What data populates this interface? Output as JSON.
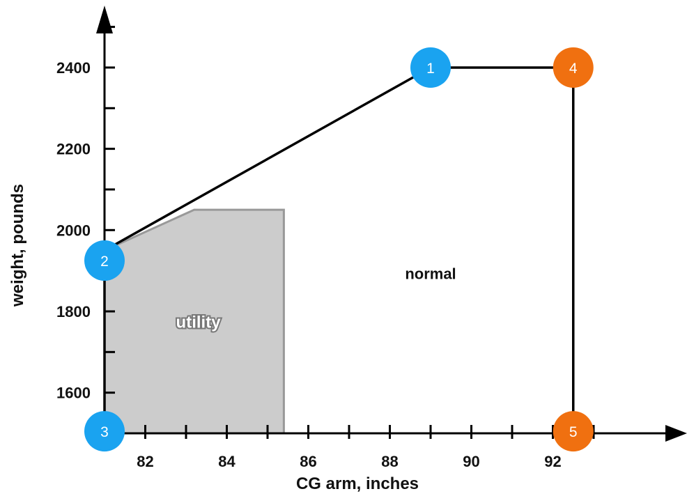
{
  "chart_data": {
    "type": "line",
    "xlabel": "CG arm, inches",
    "ylabel": "weight, pounds",
    "xlim": [
      81.0,
      94.0
    ],
    "ylim": [
      1500,
      2550
    ],
    "x_ticks": [
      "82",
      "84",
      "86",
      "88",
      "90",
      "92"
    ],
    "y_ticks": [
      "1600",
      "1800",
      "2000",
      "2200",
      "2400"
    ],
    "grid": false,
    "envelopes": [
      {
        "name": "normal",
        "points": [
          [
            81.0,
            1500
          ],
          [
            81.0,
            1950
          ],
          [
            89.0,
            2400
          ],
          [
            92.5,
            2400
          ],
          [
            92.5,
            1500
          ]
        ]
      },
      {
        "name": "utility",
        "fill": "#cccccc",
        "points": [
          [
            81.0,
            1500
          ],
          [
            81.0,
            1950
          ],
          [
            83.2,
            2050
          ],
          [
            85.4,
            2050
          ],
          [
            85.4,
            1500
          ]
        ]
      }
    ],
    "markers": [
      {
        "label": "1",
        "x": 89.0,
        "y": 2400,
        "color": "#1aa3f0"
      },
      {
        "label": "2",
        "x": 81.0,
        "y": 1925,
        "color": "#1aa3f0"
      },
      {
        "label": "3",
        "x": 81.0,
        "y": 1505,
        "color": "#1aa3f0"
      },
      {
        "label": "4",
        "x": 92.5,
        "y": 2400,
        "color": "#f07010"
      },
      {
        "label": "5",
        "x": 92.5,
        "y": 1505,
        "color": "#f07010"
      }
    ],
    "annotations": [
      {
        "text": "normal",
        "x": 89.0,
        "y": 1880
      },
      {
        "text": "utility",
        "x": 83.3,
        "y": 1760
      }
    ]
  }
}
